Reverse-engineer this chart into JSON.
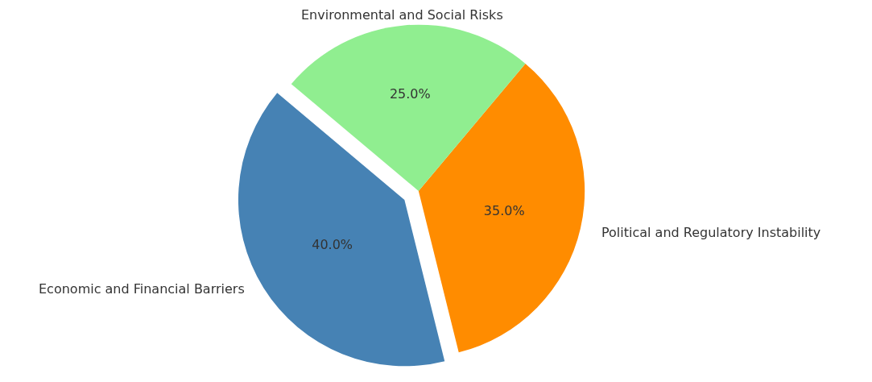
{
  "chart_data": {
    "type": "pie",
    "categories": [
      "Economic and Financial Barriers",
      "Political and Regulatory Instability",
      "Environmental and Social Risks"
    ],
    "values": [
      40,
      35,
      25
    ],
    "value_labels": [
      "40.0%",
      "35.0%",
      "25.0%"
    ],
    "colors": [
      "#4682b4",
      "#ff8c00",
      "#90ee90"
    ],
    "legend": false
  }
}
